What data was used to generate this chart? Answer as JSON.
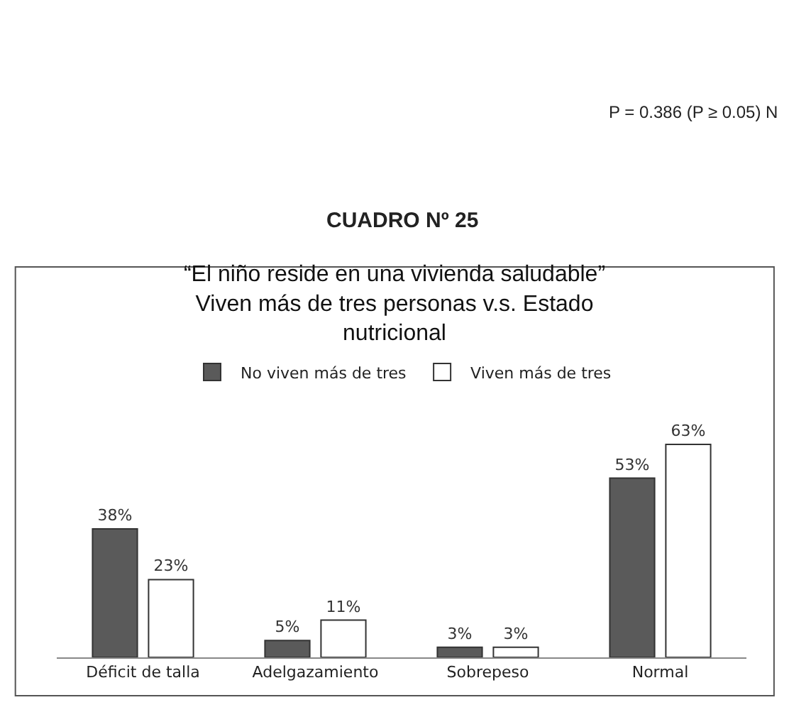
{
  "chart_data": {
    "type": "bar",
    "title": "“El niño reside en una vivienda saludable”\nViven más de tres personas v.s. Estado\nnutricional",
    "categories": [
      "Déficit de talla",
      "Adelgazamiento",
      "Sobrepeso",
      "Normal"
    ],
    "series": [
      {
        "name": "No viven más de tres",
        "color": "#5a5a5a",
        "values": [
          38,
          5,
          3,
          53
        ],
        "value_labels": [
          "38%",
          "5%",
          "3%",
          "53%"
        ]
      },
      {
        "name": "Viven más de tres",
        "color": "#ffffff",
        "values": [
          23,
          11,
          3,
          63
        ],
        "value_labels": [
          "23%",
          "11%",
          "3%",
          "63%"
        ]
      }
    ],
    "legend": "top",
    "annotations": [
      "P = 0.386 (P ≥ 0.05) N",
      "CUADRO Nº 25"
    ]
  }
}
